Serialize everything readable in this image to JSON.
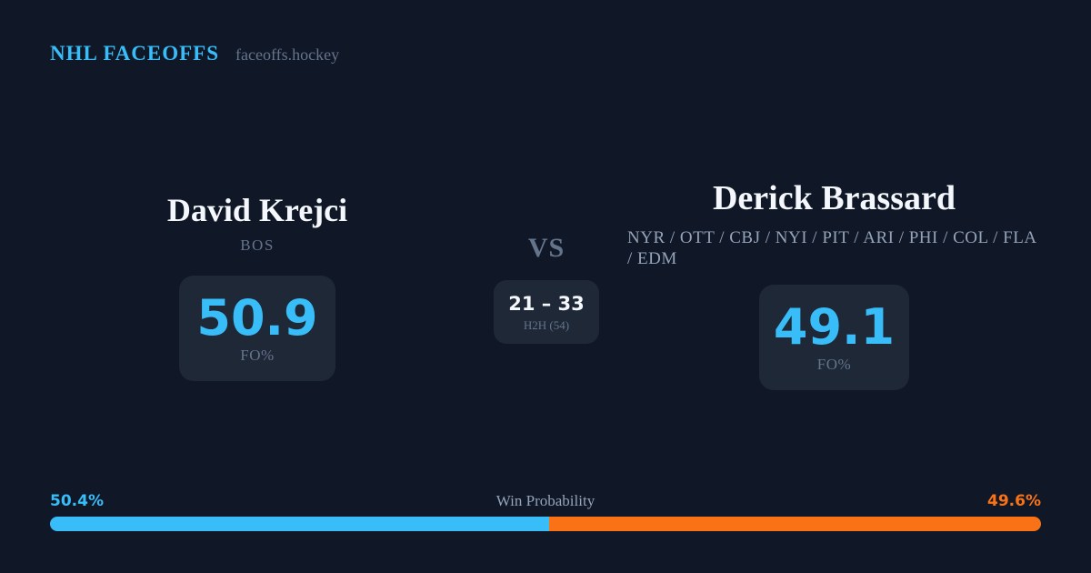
{
  "header": {
    "brand": "NHL FACEOFFS",
    "site": "faceoffs.hockey"
  },
  "matchup": {
    "vs_label": "VS",
    "h2h": {
      "score": "21 – 33",
      "label": "H2H (54)"
    },
    "player_left": {
      "name": "David Krejci",
      "teams": "BOS",
      "fo_pct": "50.9",
      "fo_label": "FO%"
    },
    "player_right": {
      "name": "Derick Brassard",
      "teams": "NYR / OTT / CBJ / NYI / PIT / ARI / PHI / COL / FLA / EDM",
      "fo_pct": "49.1",
      "fo_label": "FO%"
    }
  },
  "win_probability": {
    "title": "Win Probability",
    "left_label": "50.4%",
    "right_label": "49.6%"
  },
  "colors": {
    "background": "#101828",
    "card": "#1e2837",
    "accent_blue": "#38bdf8",
    "accent_orange": "#f97316",
    "text_primary": "#f4f7fb",
    "text_muted": "#64748b",
    "text_soft": "#94a3b8"
  },
  "chart_data": {
    "type": "bar",
    "title": "Win Probability",
    "categories": [
      "David Krejci",
      "Derick Brassard"
    ],
    "values": [
      50.4,
      49.6
    ],
    "unit": "%",
    "series_colors": [
      "#38bdf8",
      "#f97316"
    ],
    "layout": "stacked-horizontal-single-bar",
    "xlim": [
      0,
      100
    ],
    "annotations": [
      "50.4%",
      "49.6%"
    ]
  }
}
